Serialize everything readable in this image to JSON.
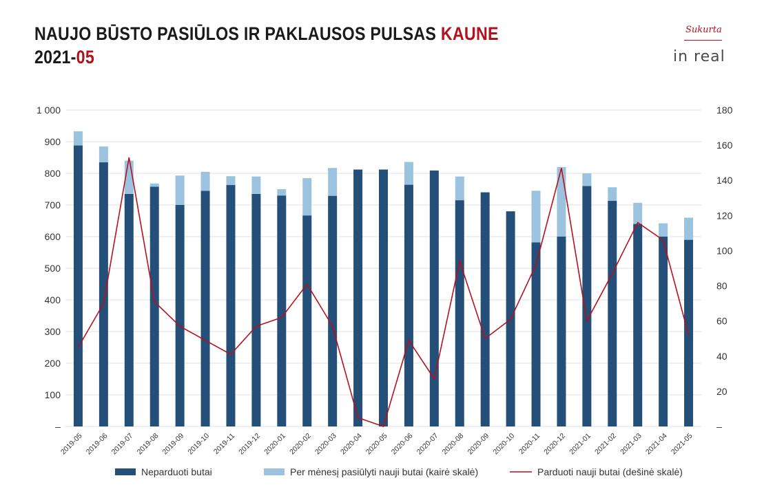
{
  "header": {
    "title_main": "NAUJO BŪSTO PASIŪLOS IR PAKLAUSOS PULSAS ",
    "title_city": "KAUNE",
    "period_year": "2021-",
    "period_month": "05"
  },
  "logo": {
    "top_text": "Sukurta",
    "brand_text": "in real"
  },
  "colors": {
    "unsold": "#244f79",
    "offered": "#9bc3e0",
    "sold": "#b5111c",
    "accent": "#b5111c",
    "grid": "#e0e0e0"
  },
  "chart_data": {
    "type": "bar",
    "stacked": true,
    "categories": [
      "2019-05",
      "2019-06",
      "2019-07",
      "2019-08",
      "2019-09",
      "2019-10",
      "2019-11",
      "2019-12",
      "2020-01",
      "2020-02",
      "2020-03",
      "2020-04",
      "2020-05",
      "2020-06",
      "2020-07",
      "2020-08",
      "2020-09",
      "2020-10",
      "2020-11",
      "2020-12",
      "2021-01",
      "2021-02",
      "2021-03",
      "2021-04",
      "2021-05"
    ],
    "left_axis": {
      "ylim": [
        0,
        1000
      ],
      "ticks": [
        0,
        100,
        200,
        300,
        400,
        500,
        600,
        700,
        800,
        900,
        1000
      ],
      "tick_labels": [
        "–",
        "100",
        "200",
        "300",
        "400",
        "500",
        "600",
        "700",
        "800",
        "900",
        "1 000"
      ]
    },
    "right_axis": {
      "ylim": [
        0,
        180
      ],
      "ticks": [
        0,
        20,
        40,
        60,
        80,
        100,
        120,
        140,
        160,
        180
      ],
      "tick_labels": [
        "–",
        "20",
        "40",
        "60",
        "80",
        "100",
        "120",
        "140",
        "160",
        "180"
      ]
    },
    "series": [
      {
        "name": "Neparduoti butai",
        "type": "bar",
        "axis": "left",
        "values": [
          888,
          835,
          735,
          758,
          700,
          745,
          763,
          735,
          730,
          667,
          729,
          812,
          812,
          764,
          809,
          715,
          740,
          680,
          582,
          600,
          760,
          713,
          640,
          600,
          590
        ]
      },
      {
        "name": "Per mėnesį pasiūlyti nauji butai (kairė skalė)",
        "type": "bar",
        "axis": "left",
        "values": [
          45,
          50,
          105,
          10,
          93,
          60,
          28,
          55,
          20,
          118,
          88,
          0,
          0,
          72,
          0,
          75,
          0,
          0,
          163,
          220,
          40,
          43,
          67,
          42,
          70
        ]
      },
      {
        "name": "Parduoti nauji butai (dešinė skalė)",
        "type": "line",
        "axis": "right",
        "values": [
          45,
          70,
          153,
          71,
          57,
          49,
          41,
          57,
          62,
          81,
          57,
          5,
          0,
          49,
          27,
          94,
          50,
          61,
          92,
          147,
          60,
          87,
          116,
          106,
          52
        ]
      }
    ],
    "legend_position": "bottom",
    "grid": true
  }
}
